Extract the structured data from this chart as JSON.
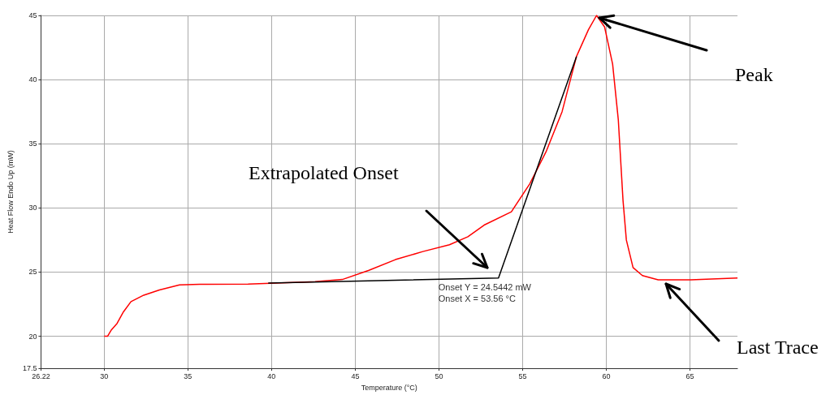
{
  "chart_data": {
    "type": "line",
    "xlabel": "Temperature (°C)",
    "ylabel": "Heat Flow Endo Up (mW)",
    "xlim": [
      26.22,
      67.84
    ],
    "xticks": [
      26.22,
      30,
      35,
      40,
      45,
      50,
      55,
      60,
      65
    ],
    "ylim": [
      17.5,
      45
    ],
    "yticks": [
      17.5,
      20,
      25,
      30,
      35,
      40,
      45
    ],
    "grid": true,
    "marker": "none",
    "line_style": "solid",
    "series": [
      {
        "color": "#ff0000",
        "x": [
          30,
          30.2,
          30.43,
          30.77,
          31.15,
          31.6,
          32.36,
          33.3,
          34.5,
          35.7,
          38.6,
          42.6,
          44.23,
          45.82,
          47.4,
          49.04,
          50.63,
          51.73,
          52.7,
          54.33,
          55.43,
          56.4,
          57.36,
          58.22,
          58.94,
          59.42,
          59.9,
          60.38,
          60.72,
          61.0,
          61.2,
          61.6,
          62.16,
          63.1,
          65.05,
          67.84
        ],
        "values": [
          20,
          20,
          20.5,
          21.0,
          21.9,
          22.7,
          23.2,
          23.6,
          24.0,
          24.05,
          24.06,
          24.25,
          24.42,
          25.14,
          25.97,
          26.6,
          27.13,
          27.75,
          28.66,
          29.7,
          31.88,
          34.37,
          37.5,
          41.8,
          43.9,
          45.0,
          44.1,
          41.2,
          36.85,
          30.6,
          27.5,
          25.35,
          24.73,
          24.4,
          24.4,
          24.54
        ]
      },
      {
        "color": "#000000",
        "x": [
          39.8,
          53.56,
          58.22
        ],
        "values": [
          24.15,
          24.54,
          41.8
        ]
      }
    ],
    "annotations": [
      "Peak",
      "Extrapolated Onset",
      "Last Trace",
      {
        "text": "Onset Y = 24.5442 mW",
        "x": 53.56,
        "y": 24.54
      },
      {
        "text": "Onset X = 53.56 °C",
        "x": 53.56,
        "y": 24.54
      }
    ]
  }
}
